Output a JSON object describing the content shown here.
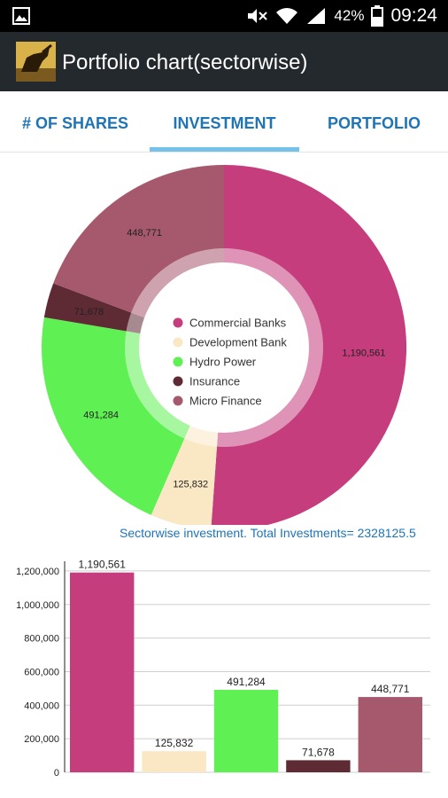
{
  "status_bar": {
    "battery": "42%",
    "time": "09:24",
    "icons": [
      "gallery-icon",
      "mute-icon",
      "wifi-icon",
      "signal-icon",
      "battery-icon"
    ]
  },
  "app_bar": {
    "title": "Portfolio chart(sectorwise)",
    "logo_icon": "bull-logo-icon"
  },
  "tabs": [
    {
      "label": "# OF SHARES",
      "active": false
    },
    {
      "label": "INVESTMENT",
      "active": true
    },
    {
      "label": "PORTFOLIO",
      "active": false
    }
  ],
  "colors": {
    "commercial_banks": "#c53d7c",
    "development_bank": "#fae8c5",
    "hydro_power": "#5ff053",
    "insurance": "#5e2b34",
    "micro_finance": "#a6586d",
    "accent": "#1f74b6",
    "tab_indicator": "#74c1e9"
  },
  "chart_data": [
    {
      "type": "pie",
      "style": "donut",
      "categories": [
        "Commercial Banks",
        "Development Bank",
        "Hydro Power",
        "Insurance",
        "Micro Finance"
      ],
      "values": [
        1190561,
        125832,
        491284,
        71678,
        448771
      ],
      "value_labels": [
        "1,190,561",
        "125,832",
        "491,284",
        "71,678",
        "448,771"
      ],
      "legend_position": "center",
      "description": "Sectorwise investment. Total Investments= 2328125.5"
    },
    {
      "type": "bar",
      "categories": [
        "Commercial Banks",
        "Development Bank",
        "Hydro Power",
        "Insurance",
        "Micro Finance"
      ],
      "values": [
        1190561,
        125832,
        491284,
        71678,
        448771
      ],
      "value_labels": [
        "1,190,561",
        "125,832",
        "491,284",
        "71,678",
        "448,771"
      ],
      "ylim": [
        0,
        1300000
      ],
      "yticks": [
        0,
        200000,
        400000,
        600000,
        800000,
        1000000,
        1200000
      ],
      "ytick_labels": [
        "0",
        "200,000",
        "400,000",
        "600,000",
        "800,000",
        "1,000,000",
        "1,200,000"
      ],
      "grid": true
    }
  ]
}
